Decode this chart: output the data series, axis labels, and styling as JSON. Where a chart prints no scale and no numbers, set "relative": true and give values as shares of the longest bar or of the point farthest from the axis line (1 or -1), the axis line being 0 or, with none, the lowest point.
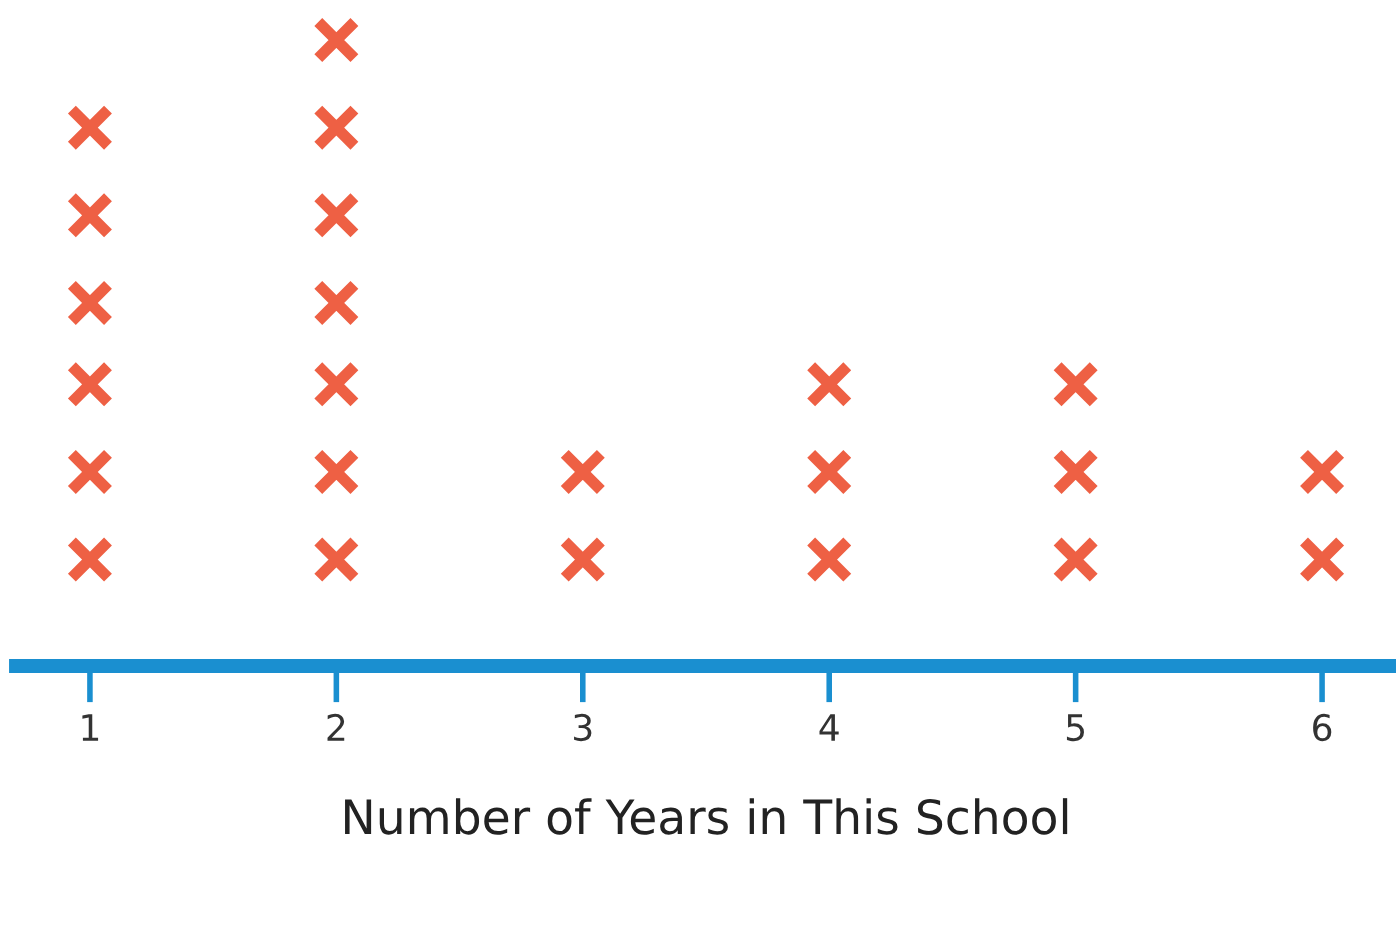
{
  "chart_data": {
    "type": "scatter",
    "xlabel": "Number of Years in This School",
    "x": [
      1,
      1,
      1,
      1,
      1,
      1,
      2,
      2,
      2,
      2,
      2,
      2,
      2,
      3,
      3,
      4,
      4,
      4,
      5,
      5,
      5,
      6,
      6
    ],
    "values": [
      0.17,
      0.31,
      0.45,
      0.58,
      0.72,
      0.86,
      0.17,
      0.31,
      0.45,
      0.58,
      0.72,
      0.86,
      1,
      0.17,
      0.31,
      0.17,
      0.31,
      0.45,
      0.17,
      0.31,
      0.45,
      0.17,
      0.31
    ],
    "relative": true,
    "color": "#ee6044",
    "marker": "cross",
    "xlim": [
      0.7,
      6.3
    ],
    "xticks": [
      1,
      2,
      3,
      4,
      5,
      6
    ],
    "tick_labels": "x",
    "grid": false,
    "legend": false
  }
}
